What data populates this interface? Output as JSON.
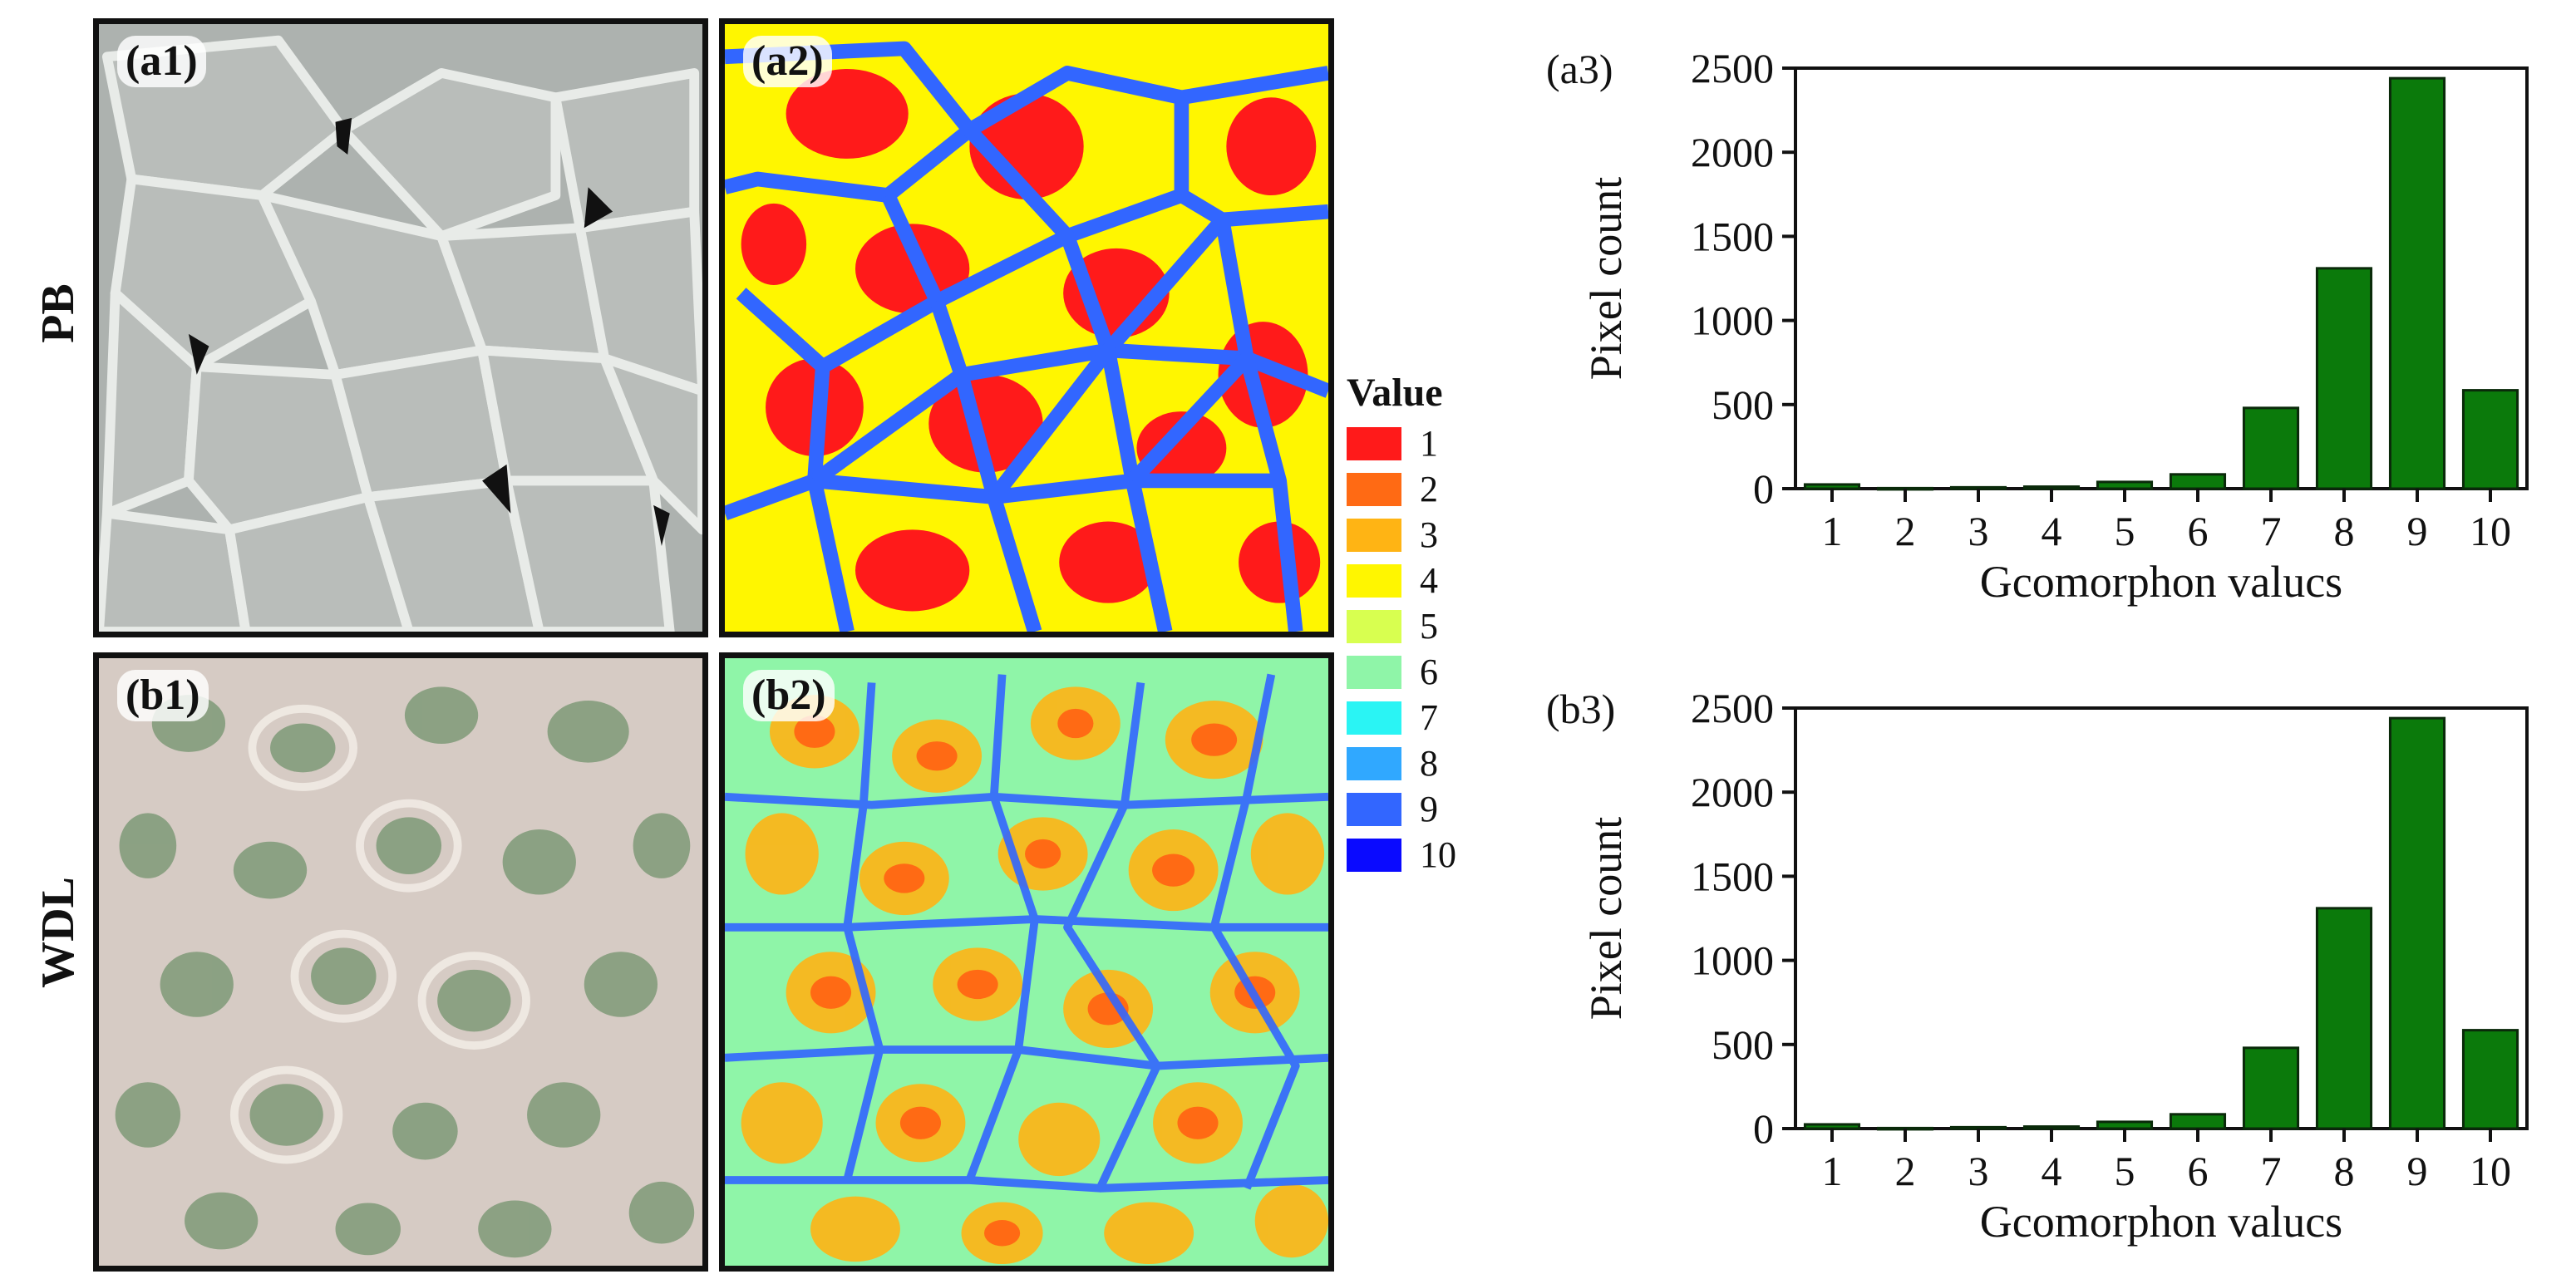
{
  "rows": [
    {
      "label": "PB"
    },
    {
      "label": "WDL"
    }
  ],
  "panels": {
    "a1": "(a1)",
    "a2": "(a2)",
    "b1": "(b1)",
    "b2": "(b2)"
  },
  "legend": {
    "title": "Value",
    "items": [
      {
        "label": "1",
        "color": "#ff1a1a"
      },
      {
        "label": "2",
        "color": "#ff6a14"
      },
      {
        "label": "3",
        "color": "#ffb414"
      },
      {
        "label": "4",
        "color": "#fff600"
      },
      {
        "label": "5",
        "color": "#d8ff50"
      },
      {
        "label": "6",
        "color": "#8ff5a8"
      },
      {
        "label": "7",
        "color": "#2af4f4"
      },
      {
        "label": "8",
        "color": "#30a8ff"
      },
      {
        "label": "9",
        "color": "#3266ff"
      },
      {
        "label": "10",
        "color": "#0a0aff"
      }
    ]
  },
  "colors": {
    "bar": "#0b7a0b",
    "bar_edge": "#0a2a0a",
    "photo_pb_bg": "#b8bcb9",
    "photo_wdl_bg": "#d9cdc5"
  },
  "chart_data": [
    {
      "type": "bar",
      "label": "(a3)",
      "categories": [
        "1",
        "2",
        "3",
        "4",
        "5",
        "6",
        "7",
        "8",
        "9",
        "10"
      ],
      "values": [
        25,
        3,
        8,
        12,
        40,
        85,
        480,
        1310,
        2440,
        585
      ],
      "xlabel": "Gcomorphon valucs",
      "ylabel": "Pixel count",
      "ylim": [
        0,
        2500
      ],
      "yticks": [
        "0",
        "500",
        "1000",
        "1500",
        "2000",
        "2500"
      ]
    },
    {
      "type": "bar",
      "label": "(b3)",
      "categories": [
        "1",
        "2",
        "3",
        "4",
        "5",
        "6",
        "7",
        "8",
        "9",
        "10"
      ],
      "values": [
        25,
        3,
        8,
        12,
        40,
        85,
        480,
        1310,
        2440,
        585
      ],
      "xlabel": "Gcomorphon valucs",
      "ylabel": "Pixel count",
      "ylim": [
        0,
        2500
      ],
      "yticks": [
        "0",
        "500",
        "1000",
        "1500",
        "2000",
        "2500"
      ]
    }
  ]
}
